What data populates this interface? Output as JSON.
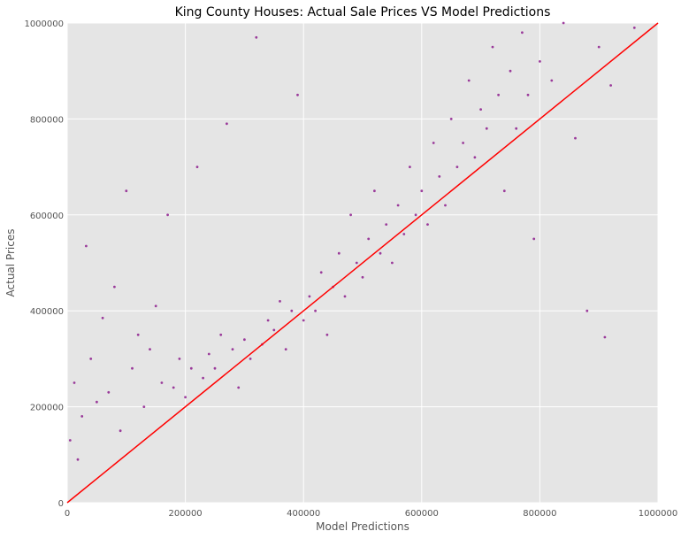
{
  "chart_data": {
    "type": "scatter",
    "title": "King County Houses: Actual Sale Prices VS Model Predictions",
    "xlabel": "Model Predictions",
    "ylabel": "Actual Prices",
    "xlim": [
      0,
      1000000
    ],
    "ylim": [
      0,
      1000000
    ],
    "xticks": [
      "0",
      "200000",
      "400000",
      "600000",
      "800000",
      "1000000"
    ],
    "yticks": [
      "0",
      "200000",
      "400000",
      "600000",
      "800000",
      "1000000"
    ],
    "grid": true,
    "background": "#e5e5e5",
    "grid_color": "#ffffff",
    "point_color": "#800080",
    "reference_line": {
      "name": "y = x",
      "color": "#ff0000",
      "from": [
        0,
        0
      ],
      "to": [
        1000000,
        1000000
      ]
    },
    "series": [
      {
        "points": [
          [
            5000,
            130000
          ],
          [
            12000,
            250000
          ],
          [
            18000,
            90000
          ],
          [
            25000,
            180000
          ],
          [
            32000,
            535000
          ],
          [
            40000,
            300000
          ],
          [
            50000,
            210000
          ],
          [
            60000,
            385000
          ],
          [
            70000,
            230000
          ],
          [
            80000,
            450000
          ],
          [
            90000,
            150000
          ],
          [
            100000,
            650000
          ],
          [
            110000,
            280000
          ],
          [
            120000,
            350000
          ],
          [
            130000,
            200000
          ],
          [
            140000,
            320000
          ],
          [
            150000,
            410000
          ],
          [
            160000,
            250000
          ],
          [
            170000,
            600000
          ],
          [
            180000,
            240000
          ],
          [
            190000,
            300000
          ],
          [
            200000,
            220000
          ],
          [
            210000,
            280000
          ],
          [
            220000,
            700000
          ],
          [
            230000,
            260000
          ],
          [
            240000,
            310000
          ],
          [
            250000,
            280000
          ],
          [
            260000,
            350000
          ],
          [
            270000,
            790000
          ],
          [
            280000,
            320000
          ],
          [
            290000,
            240000
          ],
          [
            300000,
            340000
          ],
          [
            310000,
            300000
          ],
          [
            320000,
            970000
          ],
          [
            330000,
            330000
          ],
          [
            340000,
            380000
          ],
          [
            350000,
            360000
          ],
          [
            360000,
            420000
          ],
          [
            370000,
            320000
          ],
          [
            380000,
            400000
          ],
          [
            390000,
            850000
          ],
          [
            400000,
            380000
          ],
          [
            410000,
            430000
          ],
          [
            420000,
            400000
          ],
          [
            430000,
            480000
          ],
          [
            440000,
            350000
          ],
          [
            450000,
            450000
          ],
          [
            460000,
            520000
          ],
          [
            470000,
            430000
          ],
          [
            480000,
            600000
          ],
          [
            490000,
            500000
          ],
          [
            500000,
            470000
          ],
          [
            510000,
            550000
          ],
          [
            520000,
            650000
          ],
          [
            530000,
            520000
          ],
          [
            540000,
            580000
          ],
          [
            550000,
            500000
          ],
          [
            560000,
            620000
          ],
          [
            570000,
            560000
          ],
          [
            580000,
            700000
          ],
          [
            590000,
            600000
          ],
          [
            600000,
            650000
          ],
          [
            610000,
            580000
          ],
          [
            620000,
            750000
          ],
          [
            630000,
            680000
          ],
          [
            640000,
            620000
          ],
          [
            650000,
            800000
          ],
          [
            660000,
            700000
          ],
          [
            670000,
            750000
          ],
          [
            680000,
            880000
          ],
          [
            690000,
            720000
          ],
          [
            700000,
            820000
          ],
          [
            710000,
            780000
          ],
          [
            720000,
            950000
          ],
          [
            730000,
            850000
          ],
          [
            740000,
            650000
          ],
          [
            750000,
            900000
          ],
          [
            760000,
            780000
          ],
          [
            770000,
            980000
          ],
          [
            780000,
            850000
          ],
          [
            790000,
            550000
          ],
          [
            800000,
            920000
          ],
          [
            820000,
            880000
          ],
          [
            840000,
            1000000
          ],
          [
            860000,
            760000
          ],
          [
            880000,
            400000
          ],
          [
            900000,
            950000
          ],
          [
            910000,
            345000
          ],
          [
            920000,
            870000
          ],
          [
            960000,
            990000
          ]
        ]
      }
    ]
  }
}
